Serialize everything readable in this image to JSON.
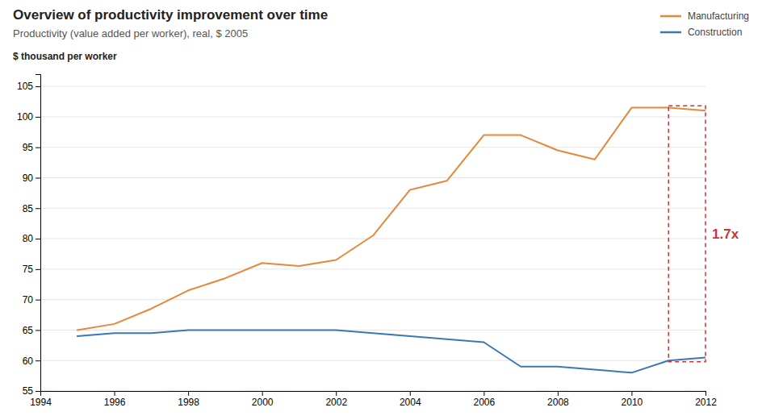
{
  "chart_data": {
    "type": "line",
    "title": "Overview of productivity improvement over time",
    "subtitle": "Productivity (value added per worker), real, $ 2005",
    "ylabel": "$ thousand per worker",
    "x": [
      1995,
      1996,
      1997,
      1998,
      1999,
      2000,
      2001,
      2002,
      2003,
      2004,
      2005,
      2006,
      2007,
      2008,
      2009,
      2010,
      2011,
      2012
    ],
    "series": [
      {
        "name": "Manufacturing",
        "color": "#E8873A",
        "values": [
          65.0,
          66.0,
          68.5,
          71.5,
          73.5,
          76.0,
          75.5,
          76.5,
          80.5,
          88.0,
          89.5,
          97.0,
          97.0,
          94.5,
          93.0,
          101.5,
          101.5,
          101.0
        ]
      },
      {
        "name": "Construction",
        "color": "#3A78B5",
        "values": [
          64.0,
          64.5,
          64.5,
          65.0,
          65.0,
          65.0,
          65.0,
          65.0,
          64.5,
          64.0,
          63.5,
          63.0,
          59.0,
          59.0,
          58.5,
          58.0,
          60.0,
          60.5
        ]
      }
    ],
    "xlim": [
      1994,
      2012
    ],
    "ylim": [
      55,
      107
    ],
    "xticks": [
      1994,
      1996,
      1998,
      2000,
      2002,
      2004,
      2006,
      2008,
      2010,
      2012
    ],
    "yticks": [
      55,
      60,
      65,
      70,
      75,
      80,
      85,
      90,
      95,
      100,
      105
    ],
    "grid": true,
    "legend": "upper right",
    "annotations": [
      {
        "text": "1.7x",
        "x0": 2011.0,
        "x1": 2012,
        "y0": 59.8,
        "y1": 101.8,
        "color": "#CC3333"
      }
    ]
  }
}
